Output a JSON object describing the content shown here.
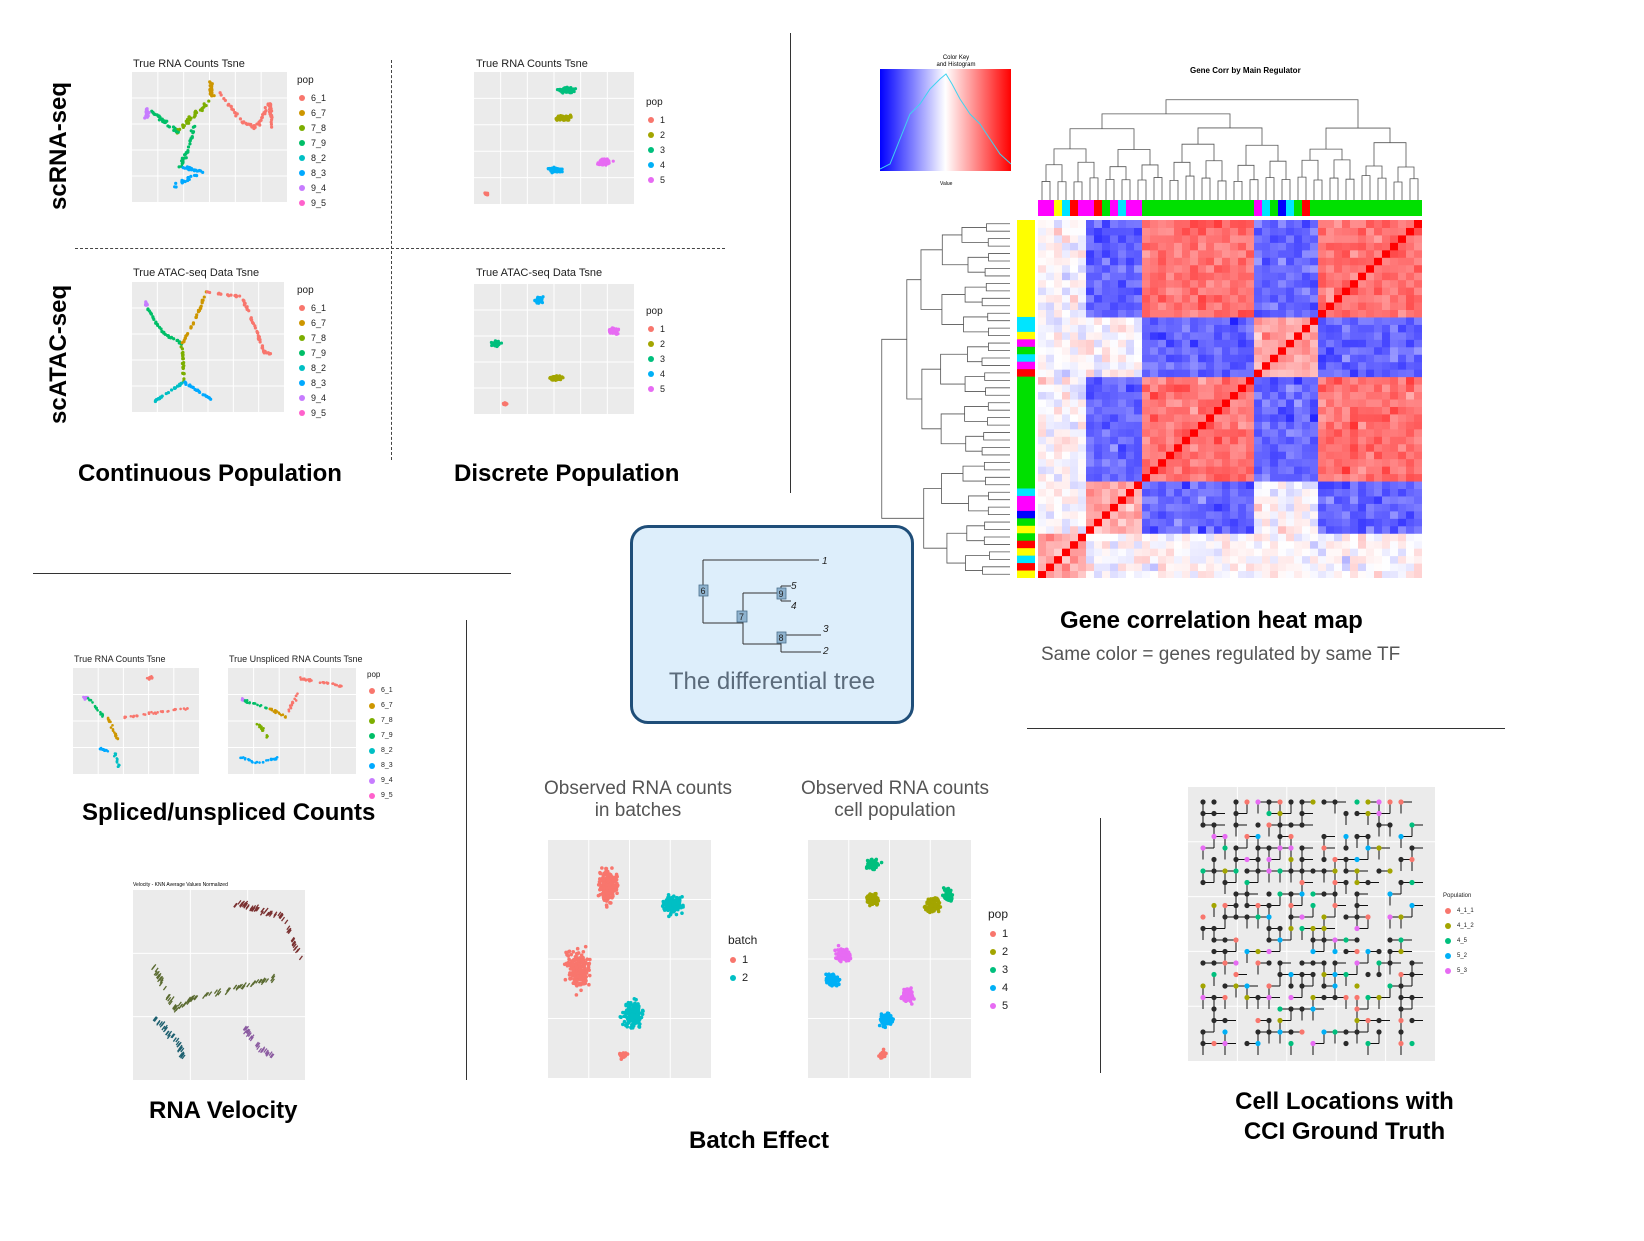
{
  "row_labels": {
    "scrna": "scRNA-seq",
    "scatac": "scATAC-seq"
  },
  "captions": {
    "continuous": "Continuous Population",
    "discrete": "Discrete Population",
    "gene_corr": "Gene correlation heat map",
    "gene_corr_sub": "Same color = genes regulated by same TF",
    "spliced": "Spliced/unspliced Counts",
    "velocity": "RNA Velocity",
    "batch": "Batch Effect",
    "cci_line1": "Cell Locations with",
    "cci_line2": "CCI Ground Truth"
  },
  "tree": {
    "label": "The differential tree",
    "leaves": [
      "1",
      "5",
      "4",
      "3",
      "2"
    ],
    "nodes": [
      "6",
      "9",
      "7",
      "8"
    ]
  },
  "plots": {
    "cont_rna": {
      "title": "True RNA Counts Tsne",
      "legend_title": "pop",
      "legend": [
        "6_1",
        "6_7",
        "7_8",
        "7_9",
        "8_2",
        "8_3",
        "9_4",
        "9_5"
      ]
    },
    "disc_rna": {
      "title": "True RNA Counts Tsne",
      "legend_title": "pop",
      "legend": [
        "1",
        "2",
        "3",
        "4",
        "5"
      ]
    },
    "cont_atac": {
      "title": "True ATAC-seq Data Tsne",
      "legend_title": "pop",
      "legend": [
        "6_1",
        "6_7",
        "7_8",
        "7_9",
        "8_2",
        "8_3",
        "9_4",
        "9_5"
      ]
    },
    "disc_atac": {
      "title": "True ATAC-seq Data Tsne",
      "legend_title": "pop",
      "legend": [
        "1",
        "2",
        "3",
        "4",
        "5"
      ]
    },
    "spliced_a": {
      "title": "True RNA Counts Tsne"
    },
    "spliced_b": {
      "title": "True Unspliced RNA Counts Tsne",
      "legend_title": "pop",
      "legend": [
        "6_1",
        "6_7",
        "7_8",
        "7_9",
        "8_2",
        "8_3",
        "9_4",
        "9_5"
      ]
    },
    "velocity": {
      "title": "Velocity - KNN Average Values Normalized"
    },
    "batch": {
      "title_l1": "Observed RNA counts",
      "title_l2": "in batches",
      "legend_title": "batch",
      "legend": [
        "1",
        "2"
      ]
    },
    "cellpop": {
      "title_l1": "Observed RNA counts",
      "title_l2": "cell population",
      "legend_title": "pop",
      "legend": [
        "1",
        "2",
        "3",
        "4",
        "5"
      ]
    },
    "cci": {
      "legend_title": "Population",
      "legend": [
        "4_1_1",
        "4_1_2",
        "4_5",
        "5_2",
        "5_3"
      ]
    },
    "heatmap": {
      "title": "Gene Corr by Main Regulator",
      "key_title_l1": "Color Key",
      "key_title_l2": "and Histogram",
      "key_xlabel": "Value"
    }
  },
  "colors": {
    "pop8": [
      "#f8766d",
      "#cd9600",
      "#7cae00",
      "#00be67",
      "#00bfc4",
      "#00a9ff",
      "#c77cff",
      "#ff61cc"
    ],
    "pop5": [
      "#f8766d",
      "#a3a500",
      "#00bf7d",
      "#00b0f6",
      "#e76bf3"
    ],
    "pop2": [
      "#f8766d",
      "#00bfc4"
    ],
    "tree_node": "#8fb3cf",
    "box_border": "#1f4e79"
  }
}
